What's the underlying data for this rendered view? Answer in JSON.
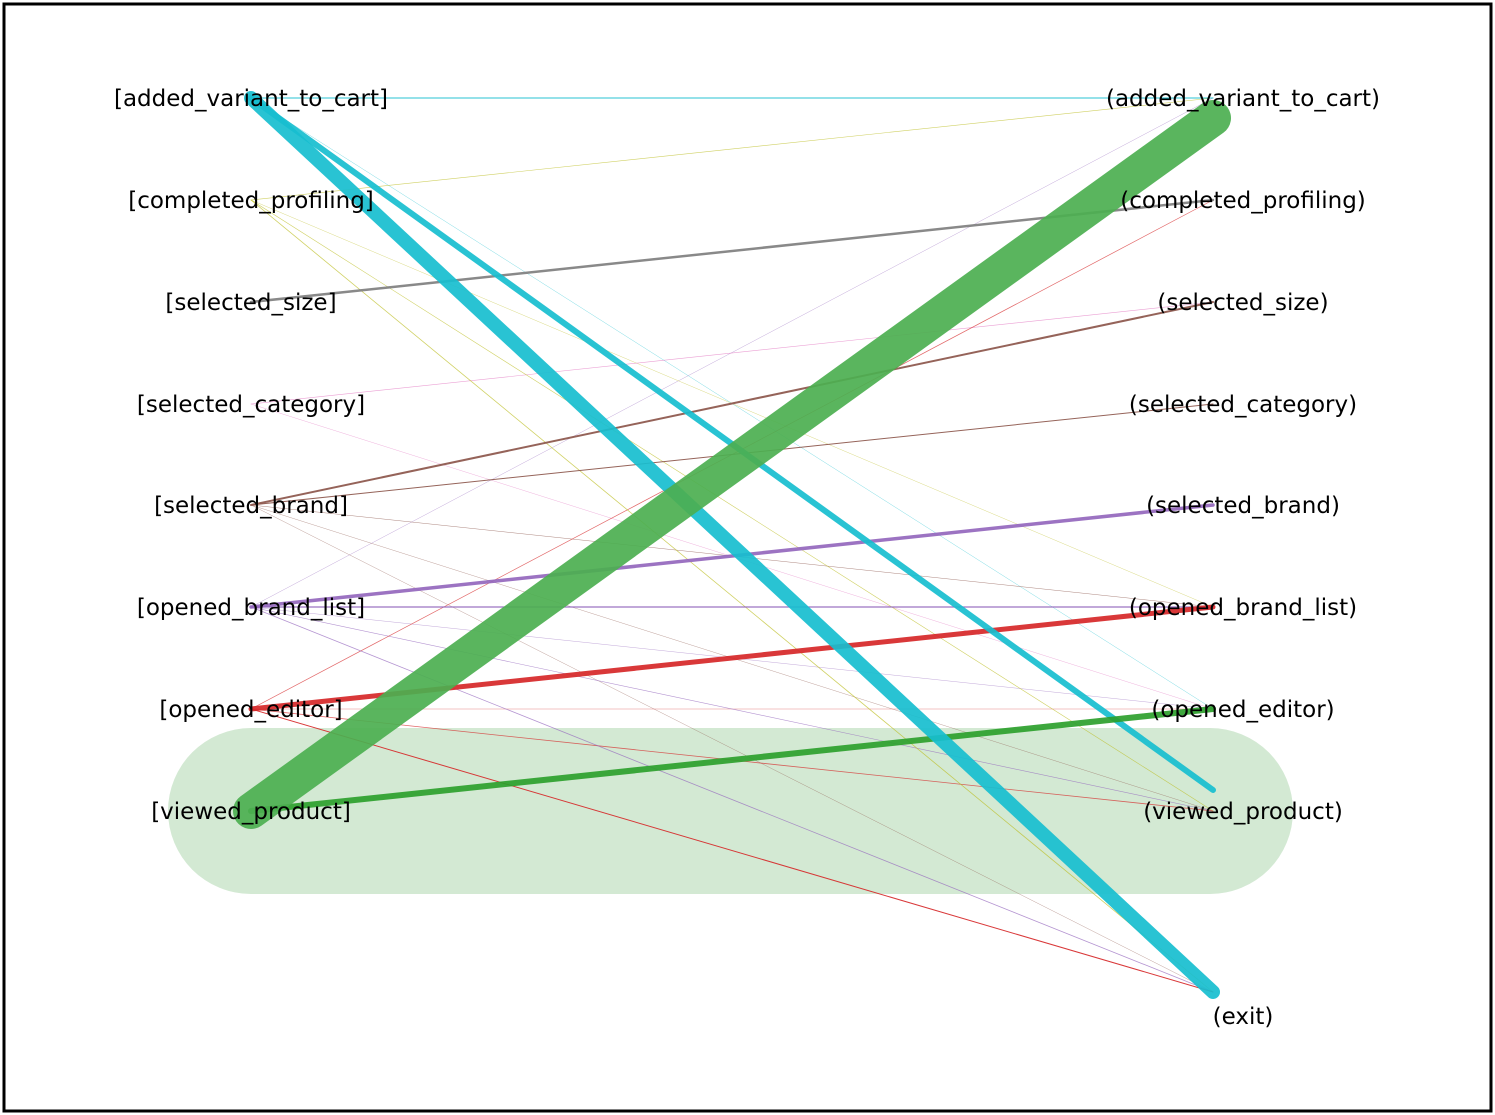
{
  "diagram": {
    "type": "bipartite-transition-graph",
    "left_nodes": [
      "[added_variant_to_cart]",
      "[completed_profiling]",
      "[selected_size]",
      "[selected_category]",
      "[selected_brand]",
      "[opened_brand_list]",
      "[opened_editor]",
      "[viewed_product]"
    ],
    "right_nodes": [
      "(added_variant_to_cart)",
      "(completed_profiling)",
      "(selected_size)",
      "(selected_category)",
      "(selected_brand)",
      "(opened_brand_list)",
      "(opened_editor)",
      "(viewed_product)",
      "(exit)"
    ],
    "highlight": {
      "left": "[viewed_product]",
      "right": "(viewed_product)",
      "color": "#d3e9d3"
    },
    "edges": [
      {
        "from": "[viewed_product]",
        "to": "(added_variant_to_cart)",
        "weight": 36,
        "color": "#4caf50"
      },
      {
        "from": "[added_variant_to_cart]",
        "to": "(exit)",
        "weight": 14,
        "color": "#17becf"
      },
      {
        "from": "[added_variant_to_cart]",
        "to": "(viewed_product)",
        "weight": 6,
        "color": "#17becf"
      },
      {
        "from": "[added_variant_to_cart]",
        "to": "(added_variant_to_cart)",
        "weight": 1,
        "color": "#17becf"
      },
      {
        "from": "[added_variant_to_cart]",
        "to": "(opened_editor)",
        "weight": 0.3,
        "color": "#17becf"
      },
      {
        "from": "[viewed_product]",
        "to": "(opened_editor)",
        "weight": 6,
        "color": "#2ca02c"
      },
      {
        "from": "[opened_editor]",
        "to": "(opened_brand_list)",
        "weight": 5,
        "color": "#d62728"
      },
      {
        "from": "[opened_editor]",
        "to": "(completed_profiling)",
        "weight": 0.7,
        "color": "#d62728"
      },
      {
        "from": "[opened_editor]",
        "to": "(opened_editor)",
        "weight": 0.4,
        "color": "#d62728"
      },
      {
        "from": "[opened_editor]",
        "to": "(viewed_product)",
        "weight": 0.8,
        "color": "#d62728"
      },
      {
        "from": "[opened_editor]",
        "to": "(exit)",
        "weight": 1,
        "color": "#d62728"
      },
      {
        "from": "[opened_brand_list]",
        "to": "(selected_brand)",
        "weight": 3.5,
        "color": "#9467bd"
      },
      {
        "from": "[opened_brand_list]",
        "to": "(opened_brand_list)",
        "weight": 1.2,
        "color": "#9467bd"
      },
      {
        "from": "[opened_brand_list]",
        "to": "(viewed_product)",
        "weight": 0.6,
        "color": "#9467bd"
      },
      {
        "from": "[opened_brand_list]",
        "to": "(exit)",
        "weight": 0.8,
        "color": "#9467bd"
      },
      {
        "from": "[opened_brand_list]",
        "to": "(added_variant_to_cart)",
        "weight": 0.3,
        "color": "#9467bd"
      },
      {
        "from": "[opened_brand_list]",
        "to": "(opened_editor)",
        "weight": 0.2,
        "color": "#9467bd"
      },
      {
        "from": "[selected_brand]",
        "to": "(selected_size)",
        "weight": 2,
        "color": "#8c564b"
      },
      {
        "from": "[selected_brand]",
        "to": "(selected_category)",
        "weight": 1,
        "color": "#8c564b"
      },
      {
        "from": "[selected_brand]",
        "to": "(opened_brand_list)",
        "weight": 0.5,
        "color": "#8c564b"
      },
      {
        "from": "[selected_brand]",
        "to": "(viewed_product)",
        "weight": 0.3,
        "color": "#8c564b"
      },
      {
        "from": "[selected_brand]",
        "to": "(exit)",
        "weight": 0.3,
        "color": "#8c564b"
      },
      {
        "from": "[selected_category]",
        "to": "(selected_size)",
        "weight": 0.6,
        "color": "#e377c2"
      },
      {
        "from": "[selected_category]",
        "to": "(opened_editor)",
        "weight": 0.2,
        "color": "#e377c2"
      },
      {
        "from": "[selected_size]",
        "to": "(completed_profiling)",
        "weight": 2.5,
        "color": "#7f7f7f"
      },
      {
        "from": "[completed_profiling]",
        "to": "(added_variant_to_cart)",
        "weight": 0.6,
        "color": "#bcbd22"
      },
      {
        "from": "[completed_profiling]",
        "to": "(exit)",
        "weight": 0.8,
        "color": "#bcbd22"
      },
      {
        "from": "[completed_profiling]",
        "to": "(viewed_product)",
        "weight": 0.6,
        "color": "#bcbd22"
      },
      {
        "from": "[completed_profiling]",
        "to": "(opened_brand_list)",
        "weight": 0.4,
        "color": "#bcbd22"
      }
    ]
  }
}
